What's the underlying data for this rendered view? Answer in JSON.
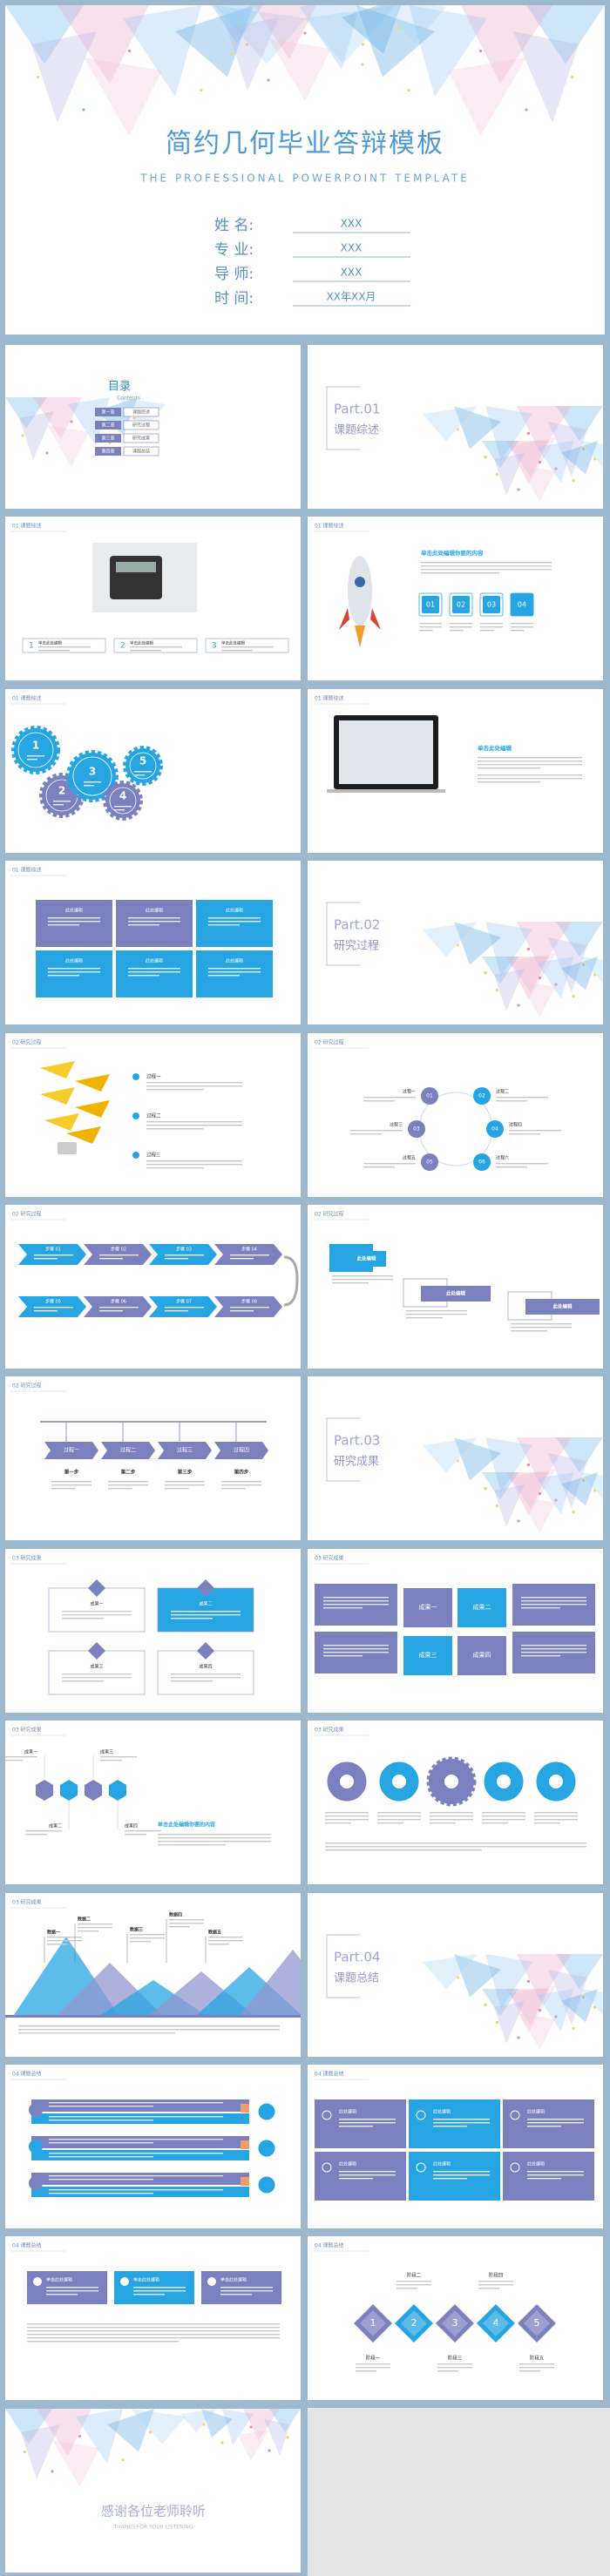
{
  "cover": {
    "title": "简约几何毕业答辩模板",
    "subtitle": "THE PROFESSIONAL POWERPOINT TEMPLATE",
    "fields": [
      {
        "label": "姓 名:",
        "value": "XXX"
      },
      {
        "label": "专 业:",
        "value": "XXX"
      },
      {
        "label": "导 师:",
        "value": "XXX"
      },
      {
        "label": "时 间:",
        "value": "XX年XX月"
      }
    ]
  },
  "slides": [
    {
      "title": "目录",
      "subtitle": "Contents",
      "items": [
        {
          "num": "第一章",
          "text": "课题综述"
        },
        {
          "num": "第二章",
          "text": "研究过程"
        },
        {
          "num": "第三章",
          "text": "研究成果"
        },
        {
          "num": "第四章",
          "text": "课题总结"
        }
      ]
    },
    {
      "part": "Part.01",
      "title": "课题综述"
    },
    {
      "header": "01 课题综述",
      "nums": [
        "1",
        "2",
        "3"
      ],
      "items": [
        "单击此处编辑",
        "单击此处编辑",
        "单击此处编辑"
      ]
    },
    {
      "header": "01 课题综述",
      "heading": "单击此处编辑你要的内容",
      "nums": [
        "01",
        "02",
        "03",
        "04"
      ]
    },
    {
      "header": "01 课题综述",
      "nums": [
        "1",
        "2",
        "3",
        "4",
        "5"
      ]
    },
    {
      "header": "01 课题综述",
      "heading": "单击此处编辑"
    },
    {
      "header": "01 课题综述",
      "items": [
        "此处编辑",
        "此处编辑",
        "此处编辑",
        "此处编辑",
        "此处编辑",
        "此处编辑"
      ]
    },
    {
      "part": "Part.02",
      "title": "研究过程"
    },
    {
      "header": "02 研究过程",
      "items": [
        "过程一",
        "过程二",
        "过程三"
      ]
    },
    {
      "header": "02 研究过程",
      "nums": [
        "01",
        "02",
        "03",
        "04",
        "05",
        "06"
      ],
      "items": [
        "过程一",
        "过程二",
        "过程三",
        "过程四",
        "过程五",
        "过程六"
      ]
    },
    {
      "header": "02 研究过程",
      "items": [
        "步骤 01",
        "步骤 02",
        "步骤 03",
        "步骤 04",
        "步骤 05",
        "步骤 06",
        "步骤 07",
        "步骤 08"
      ]
    },
    {
      "header": "02 研究过程",
      "items": [
        "此处编辑",
        "此处编辑",
        "此处编辑"
      ]
    },
    {
      "header": "02 研究过程",
      "items": [
        "过程一",
        "过程二",
        "过程三",
        "过程四"
      ],
      "steps": [
        "第一步",
        "第二步",
        "第三步",
        "第四步"
      ]
    },
    {
      "part": "Part.03",
      "title": "研究成果"
    },
    {
      "header": "03 研究成果",
      "items": [
        "成果一",
        "成果二",
        "成果三",
        "成果四"
      ]
    },
    {
      "header": "03 研究成果",
      "items": [
        "成果一",
        "成果二",
        "成果三",
        "成果四"
      ]
    },
    {
      "header": "03 研究成果",
      "items": [
        "成果一",
        "成果二",
        "成果三",
        "成果四"
      ],
      "heading": "单击此处编辑你要的内容"
    },
    {
      "header": "03 研究成果"
    },
    {
      "header": "03 研究成果",
      "items": [
        "数据一",
        "数据二",
        "数据三",
        "数据四",
        "数据五"
      ]
    },
    {
      "part": "Part.04",
      "title": "课题总结"
    },
    {
      "header": "04 课题总结"
    },
    {
      "header": "04 课题总结",
      "items": [
        "此处编辑",
        "此处编辑",
        "此处编辑",
        "此处编辑",
        "此处编辑",
        "此处编辑"
      ]
    },
    {
      "header": "04 课题总结",
      "items": [
        "单击此处编辑",
        "单击此处编辑",
        "单击此处编辑"
      ]
    },
    {
      "header": "04 课题总结",
      "nums": [
        "1",
        "2",
        "3",
        "4",
        "5"
      ],
      "items": [
        "阶段一",
        "阶段二",
        "阶段三",
        "阶段四",
        "阶段五"
      ]
    },
    {
      "title": "感谢各位老师聆听",
      "subtitle": "THANKS FOR YOUR LISTENING"
    }
  ]
}
